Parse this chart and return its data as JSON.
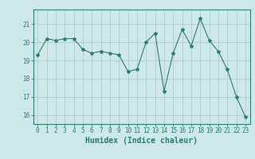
{
  "x": [
    0,
    1,
    2,
    3,
    4,
    5,
    6,
    7,
    8,
    9,
    10,
    11,
    12,
    13,
    14,
    15,
    16,
    17,
    18,
    19,
    20,
    21,
    22,
    23
  ],
  "y": [
    19.3,
    20.2,
    20.1,
    20.2,
    20.2,
    19.6,
    19.4,
    19.5,
    19.4,
    19.3,
    18.4,
    18.5,
    20.0,
    20.5,
    17.3,
    19.4,
    20.7,
    19.8,
    21.3,
    20.1,
    19.5,
    18.5,
    17.0,
    15.9
  ],
  "line_color": "#2d7a6e",
  "marker": "*",
  "marker_size": 3,
  "bg_color": "#cce8e8",
  "grid_color": "#b0cccc",
  "xlabel": "Humidex (Indice chaleur)",
  "ylim": [
    15.5,
    21.8
  ],
  "xlim": [
    -0.5,
    23.5
  ],
  "yticks": [
    16,
    17,
    18,
    19,
    20,
    21
  ],
  "xticks": [
    0,
    1,
    2,
    3,
    4,
    5,
    6,
    7,
    8,
    9,
    10,
    11,
    12,
    13,
    14,
    15,
    16,
    17,
    18,
    19,
    20,
    21,
    22,
    23
  ],
  "tick_color": "#2d7a6e",
  "label_color": "#2d7a6e",
  "axis_color": "#2d7a6e",
  "xlabel_fontsize": 7,
  "tick_fontsize": 5.5
}
